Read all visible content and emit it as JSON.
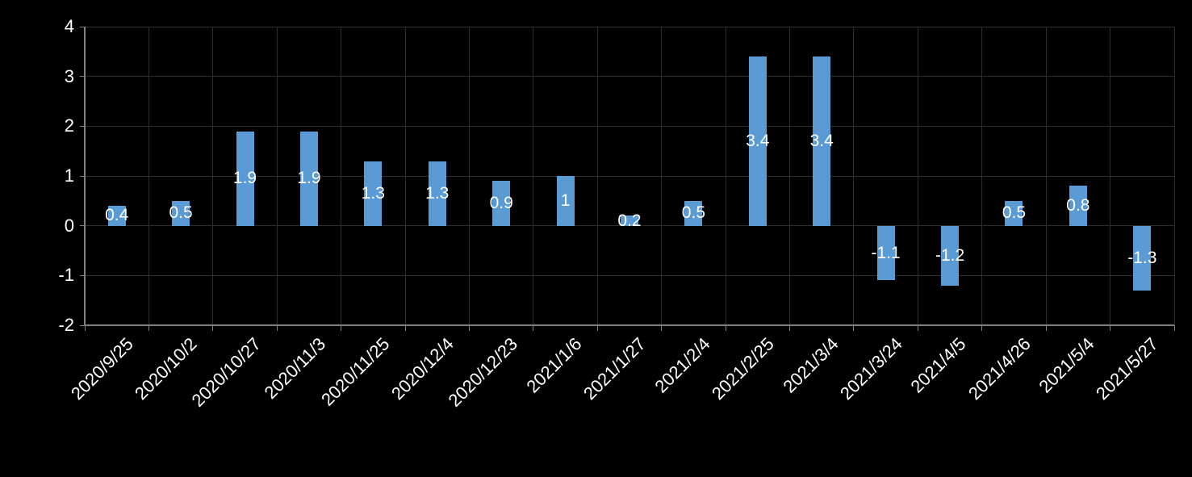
{
  "chart_data": {
    "type": "bar",
    "title": "",
    "xlabel": "",
    "ylabel": "",
    "categories": [
      "2020/9/25",
      "2020/10/2",
      "2020/10/27",
      "2020/11/3",
      "2020/11/25",
      "2020/12/4",
      "2020/12/23",
      "2021/1/6",
      "2021/1/27",
      "2021/2/4",
      "2021/2/25",
      "2021/3/4",
      "2021/3/24",
      "2021/4/5",
      "2021/4/26",
      "2021/5/4",
      "2021/5/27"
    ],
    "values": [
      0.4,
      0.5,
      1.9,
      1.9,
      1.3,
      1.3,
      0.9,
      1,
      0.2,
      0.5,
      3.4,
      3.4,
      -1.1,
      -1.2,
      0.5,
      0.8,
      -1.3
    ],
    "data_labels": [
      "0.4",
      "0.5",
      "1.9",
      "1.9",
      "1.3",
      "1.3",
      "0.9",
      "1",
      "0.2",
      "0.5",
      "3.4",
      "3.4",
      "-1.1",
      "-1.2",
      "0.5",
      "0.8",
      "-1.3"
    ],
    "yticks": [
      4,
      3,
      2,
      1,
      0,
      -1,
      -2
    ],
    "ylim": [
      -2,
      4
    ],
    "grid": true,
    "legend": "none",
    "data_label_position": "inside-center",
    "colors": {
      "background": "#000000",
      "bar": "#5B9BD5",
      "gridline": "#2E2E2E",
      "axis_line": "#808080",
      "text": "#FFFFFF"
    }
  }
}
